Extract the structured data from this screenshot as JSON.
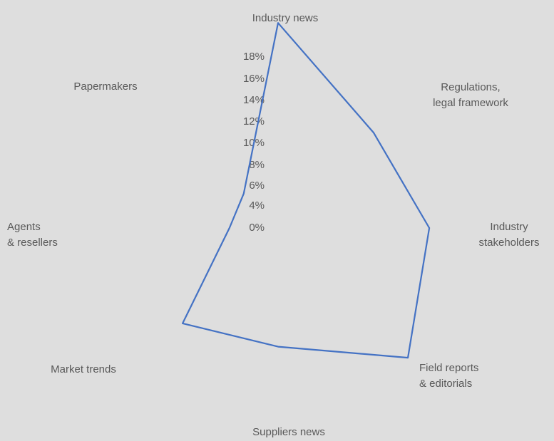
{
  "colors": {
    "background": "#dedede",
    "series_line": "#4472c4",
    "text": "#595959"
  },
  "chart_data": {
    "type": "radar",
    "categories": [
      "Industry news",
      "Regulations, legal framework",
      "Industry stakeholders",
      "Field reports & editorials",
      "Suppliers news",
      "Market trends",
      "Agents & resellers",
      "Papermakers"
    ],
    "category_label_lines": [
      [
        "Industry news"
      ],
      [
        "Regulations,",
        "legal framework"
      ],
      [
        "Industry",
        "stakeholders"
      ],
      [
        "Field reports",
        "& editorials"
      ],
      [
        "Suppliers news"
      ],
      [
        "Market trends"
      ],
      [
        "Agents",
        "& resellers"
      ],
      [
        "Papermakers"
      ]
    ],
    "series": [
      {
        "values": [
          0.19,
          0.125,
          0.14,
          0.17,
          0.11,
          0.125,
          0.045,
          0.045
        ]
      }
    ],
    "radial_ticks": [
      "0%",
      "4%",
      "6%",
      "8%",
      "10%",
      "12%",
      "14%",
      "16%",
      "18%"
    ],
    "radial_range": [
      0,
      0.2
    ],
    "grid": false,
    "legend": "none",
    "title": ""
  }
}
